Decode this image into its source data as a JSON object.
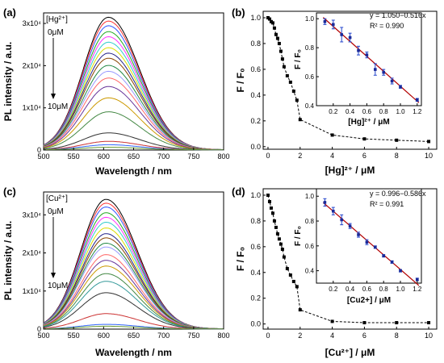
{
  "chart_data": [
    {
      "id": "a",
      "type": "line",
      "panel_label": "(a)",
      "ion_label": "[Hg²⁺]",
      "arrow_top_label": "0μM",
      "arrow_bottom_label": "10μM",
      "xlabel": "Wavelength / nm",
      "ylabel": "PL intensity / a.u.",
      "xlim": [
        500,
        800
      ],
      "ylim": [
        0,
        32500
      ],
      "xticks": [
        "500",
        "550",
        "600",
        "650",
        "700",
        "750",
        "800"
      ],
      "yticks": [
        {
          "value": 0,
          "label": "0"
        },
        {
          "value": 10000,
          "label": "1x10⁴"
        },
        {
          "value": 20000,
          "label": "2x10⁴"
        },
        {
          "value": 30000,
          "label": "3x10⁴"
        }
      ],
      "peak_x": 608,
      "series_peaks": [
        31400,
        30500,
        29400,
        28000,
        26800,
        25500,
        24200,
        22900,
        21700,
        20000,
        18600,
        17000,
        15000,
        12300,
        9000,
        4000,
        2000,
        1200,
        600
      ],
      "series_colors": [
        "#000000",
        "#ff3333",
        "#3355ff",
        "#22aa22",
        "#ff33ff",
        "#33cccc",
        "#dddd00",
        "#222288",
        "#884400",
        "#228844",
        "#9999ff",
        "#ff6666",
        "#663399",
        "#cc9900",
        "#448844",
        "#333333",
        "#cc3333",
        "#3366ff",
        "#669933"
      ]
    },
    {
      "id": "b",
      "type": "scatter",
      "panel_label": "(b)",
      "xlabel": "[Hg]²⁺ / μM",
      "ylabel": "F / F₀",
      "xlim": [
        -0.3,
        10.5
      ],
      "ylim": [
        -0.02,
        1.05
      ],
      "xticks": [
        "0",
        "2",
        "4",
        "6",
        "8",
        "10"
      ],
      "yticks": [
        "0.0",
        "0.2",
        "0.4",
        "0.6",
        "0.8",
        "1.0"
      ],
      "x": [
        0,
        0.1,
        0.2,
        0.3,
        0.4,
        0.5,
        0.6,
        0.7,
        0.8,
        0.9,
        1.0,
        1.2,
        1.4,
        1.6,
        1.8,
        2,
        4,
        6,
        8,
        10
      ],
      "y": [
        1.0,
        0.99,
        0.97,
        0.96,
        0.92,
        0.87,
        0.84,
        0.8,
        0.74,
        0.68,
        0.62,
        0.55,
        0.5,
        0.43,
        0.36,
        0.21,
        0.09,
        0.06,
        0.05,
        0.04
      ],
      "inset": {
        "xlabel": "[Hg]²⁺ / μM",
        "ylabel": "F / F₀",
        "xlim": [
          0.0,
          1.25
        ],
        "ylim": [
          0.4,
          1.04
        ],
        "xticks": [
          "0.2",
          "0.4",
          "0.6",
          "0.8",
          "1.0",
          "1.2"
        ],
        "yticks": [
          "0.4",
          "0.6",
          "0.8",
          "1.0"
        ],
        "x": [
          0.1,
          0.2,
          0.3,
          0.4,
          0.5,
          0.6,
          0.7,
          0.8,
          0.9,
          1.0,
          1.2
        ],
        "y": [
          0.98,
          0.96,
          0.89,
          0.87,
          0.78,
          0.75,
          0.65,
          0.63,
          0.57,
          0.53,
          0.44
        ],
        "err": [
          0.02,
          0.03,
          0.05,
          0.03,
          0.03,
          0.02,
          0.04,
          0.02,
          0.02,
          0.01,
          0.01
        ],
        "fit": {
          "intercept": 1.05,
          "slope": -0.516
        },
        "equation": "y = 1.050−0.516x",
        "r2": "R² = 0.990"
      }
    },
    {
      "id": "c",
      "type": "line",
      "panel_label": "(c)",
      "ion_label": "[Cu²⁺]",
      "arrow_top_label": "0μM",
      "arrow_bottom_label": "10μM",
      "xlabel": "Wavelength / nm",
      "ylabel": "PL intensity / a.u.",
      "xlim": [
        500,
        800
      ],
      "ylim": [
        0,
        36000
      ],
      "xticks": [
        "500",
        "550",
        "600",
        "650",
        "700",
        "750",
        "800"
      ],
      "yticks": [
        {
          "value": 0,
          "label": "0"
        },
        {
          "value": 10000,
          "label": "1x10⁴"
        },
        {
          "value": 20000,
          "label": "2x10⁴"
        },
        {
          "value": 30000,
          "label": "3x10⁴"
        }
      ],
      "peak_x": 604,
      "series_peaks": [
        34000,
        33000,
        32000,
        30500,
        29300,
        28000,
        26500,
        25000,
        23900,
        22500,
        21500,
        19500,
        18000,
        16500,
        14500,
        12500,
        9500,
        4000,
        1200,
        700
      ],
      "series_colors": [
        "#000000",
        "#ff3333",
        "#3355ff",
        "#22aa22",
        "#ff33ff",
        "#33cccc",
        "#dddd00",
        "#222288",
        "#884400",
        "#228844",
        "#9999ff",
        "#ff6666",
        "#663399",
        "#cc9900",
        "#448844",
        "#339999",
        "#333333",
        "#cc3333",
        "#3366ff",
        "#669933"
      ]
    },
    {
      "id": "d",
      "type": "scatter",
      "panel_label": "(d)",
      "xlabel": "[Cu²⁺] / μM",
      "ylabel": "F / F₀",
      "xlim": [
        -0.3,
        10.5
      ],
      "ylim": [
        -0.04,
        1.05
      ],
      "xticks": [
        "0",
        "2",
        "4",
        "6",
        "8",
        "10"
      ],
      "yticks": [
        "0.0",
        "0.2",
        "0.4",
        "0.6",
        "0.8",
        "1.0"
      ],
      "x": [
        0,
        0.1,
        0.2,
        0.3,
        0.4,
        0.5,
        0.6,
        0.7,
        0.8,
        0.9,
        1.0,
        1.2,
        1.4,
        1.6,
        1.8,
        2,
        4,
        6,
        8,
        10
      ],
      "y": [
        1.0,
        0.95,
        0.9,
        0.86,
        0.8,
        0.75,
        0.7,
        0.66,
        0.62,
        0.58,
        0.52,
        0.43,
        0.38,
        0.33,
        0.29,
        0.11,
        0.02,
        0.01,
        0.01,
        0.01
      ],
      "inset": {
        "xlabel": "[Cu2+] / μM",
        "ylabel": "F / F₀",
        "xlim": [
          0.0,
          1.25
        ],
        "ylim": [
          0.3,
          1.06
        ],
        "xticks": [
          "0.2",
          "0.4",
          "0.6",
          "0.8",
          "1.0",
          "1.2"
        ],
        "yticks": [
          "0.4",
          "0.6",
          "0.8",
          "1.0"
        ],
        "x": [
          0.1,
          0.2,
          0.3,
          0.4,
          0.5,
          0.6,
          0.7,
          0.8,
          0.9,
          1.0,
          1.2
        ],
        "y": [
          0.95,
          0.88,
          0.81,
          0.76,
          0.69,
          0.63,
          0.59,
          0.52,
          0.47,
          0.4,
          0.33
        ],
        "err": [
          0.03,
          0.03,
          0.04,
          0.02,
          0.02,
          0.02,
          0.01,
          0.01,
          0.01,
          0.01,
          0.01
        ],
        "fit": {
          "intercept": 0.996,
          "slope": -0.586
        },
        "equation": "y = 0.996−0.586x",
        "r2": "R² = 0.991"
      }
    }
  ]
}
